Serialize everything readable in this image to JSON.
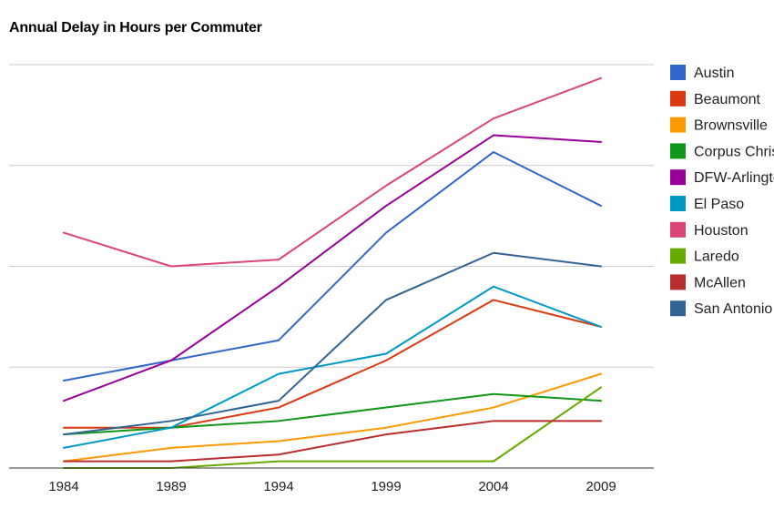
{
  "chart_data": {
    "type": "line",
    "title": "Annual Delay in Hours per Commuter",
    "xlabel": "",
    "ylabel": "",
    "x": [
      "1984",
      "1989",
      "1994",
      "1999",
      "2004",
      "2009"
    ],
    "ylim": [
      0,
      60
    ],
    "grid": true,
    "legend_position": "right",
    "series": [
      {
        "name": "Austin",
        "color": "#3366cc",
        "values": [
          13,
          16,
          19,
          35,
          47,
          39
        ]
      },
      {
        "name": "Beaumont",
        "color": "#dc3912",
        "values": [
          6,
          6,
          9,
          16,
          25,
          21
        ]
      },
      {
        "name": "Brownsville",
        "color": "#ff9900",
        "values": [
          1,
          3,
          4,
          6,
          9,
          14
        ]
      },
      {
        "name": "Corpus Christi",
        "color": "#109618",
        "values": [
          5,
          6,
          7,
          9,
          11,
          10
        ]
      },
      {
        "name": "DFW-Arlington",
        "color": "#990099",
        "values": [
          10,
          16,
          27,
          39,
          49.5,
          48.5
        ]
      },
      {
        "name": "El Paso",
        "color": "#0099c6",
        "values": [
          3,
          6,
          14,
          17,
          27,
          21
        ]
      },
      {
        "name": "Houston",
        "color": "#dd4477",
        "values": [
          35,
          30,
          31,
          42,
          52,
          58
        ]
      },
      {
        "name": "Laredo",
        "color": "#66aa00",
        "values": [
          0,
          0,
          1,
          1,
          1,
          12
        ]
      },
      {
        "name": "McAllen",
        "color": "#b82e2e",
        "values": [
          1,
          1,
          2,
          5,
          7,
          7
        ]
      },
      {
        "name": "San Antonio",
        "color": "#316395",
        "values": [
          5,
          7,
          10,
          25,
          32,
          30
        ]
      }
    ]
  }
}
